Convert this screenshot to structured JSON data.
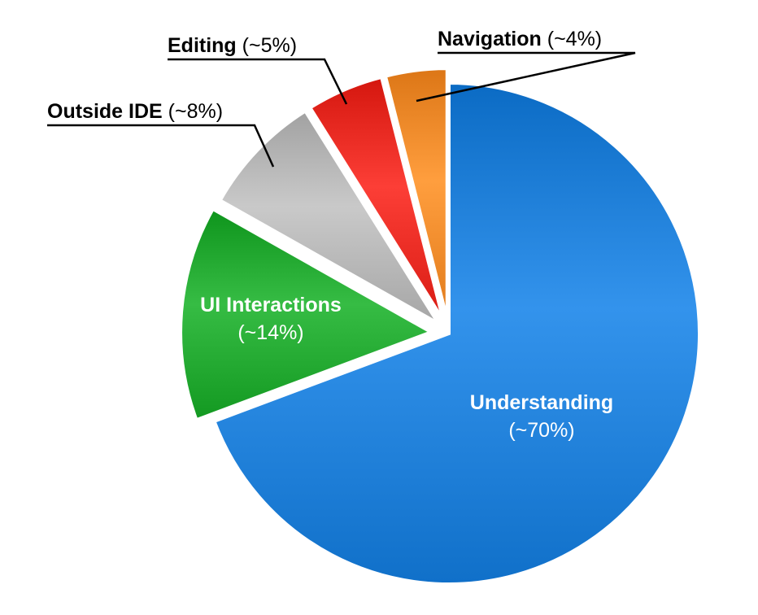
{
  "chart_data": {
    "type": "pie",
    "title": "",
    "slices": [
      {
        "name": "Understanding",
        "pct_label": "(~70%)",
        "value": 70,
        "color": "#1f7fd8",
        "label_position": "inside"
      },
      {
        "name": "UI Interactions",
        "pct_label": "(~14%)",
        "value": 14,
        "color": "#22a830",
        "label_position": "inside"
      },
      {
        "name": "Outside IDE",
        "pct_label": "(~8%)",
        "value": 8,
        "color": "#b5b5b5",
        "label_position": "outside"
      },
      {
        "name": "Editing",
        "pct_label": "(~5%)",
        "value": 5,
        "color": "#e82a22",
        "label_position": "outside"
      },
      {
        "name": "Navigation",
        "pct_label": "(~4%)",
        "value": 4,
        "color": "#f08a2a",
        "label_position": "outside"
      }
    ]
  }
}
